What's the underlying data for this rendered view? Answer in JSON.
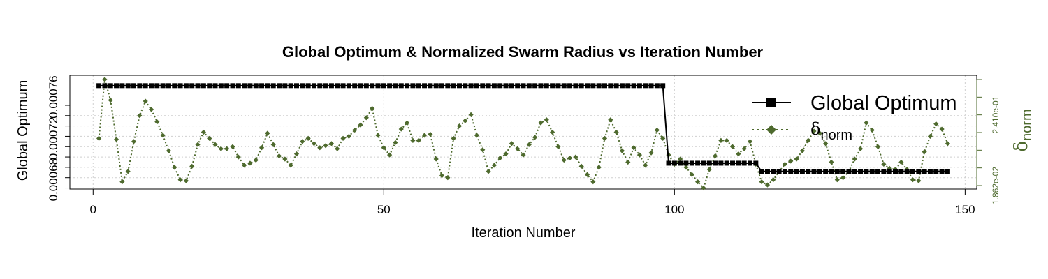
{
  "chart_data": {
    "type": "line",
    "title": "Global Optimum & Normalized Swarm Radius vs Iteration Number",
    "xlabel": "Iteration Number",
    "ylabel": "Global Optimum",
    "y2label_symbol": "δ",
    "y2label_sub": "norm",
    "xlim": [
      -4,
      152
    ],
    "xticks": [
      "0",
      "50",
      "100",
      "150"
    ],
    "ylim": [
      0.000671,
      0.000781
    ],
    "yticks": [
      "0.00068",
      "0.00072",
      "0.00076"
    ],
    "y2ticks": [
      "1.862e-02",
      "2.410e-01"
    ],
    "grid": true,
    "legend_position": "top-right",
    "colors": {
      "optimum": "#000000",
      "delta": "#4e6a2e"
    },
    "series": [
      {
        "name": "Global Optimum",
        "axis": "left",
        "segments": [
          {
            "x_from": 1,
            "x_to": 98,
            "value": 0.000771
          },
          {
            "x_from": 99,
            "x_to": 114,
            "value": 0.000696
          },
          {
            "x_from": 115,
            "x_to": 147,
            "value": 0.000688
          }
        ]
      },
      {
        "name": "δnorm",
        "legend_symbol": "δ",
        "legend_sub": "norm",
        "axis": "right",
        "values": [
          0.00072,
          0.000777,
          0.000757,
          0.000719,
          0.000678,
          0.000688,
          0.000717,
          0.000742,
          0.000756,
          0.000748,
          0.000736,
          0.000723,
          0.000708,
          0.000692,
          0.00068,
          0.000679,
          0.000693,
          0.000714,
          0.000726,
          0.00072,
          0.000714,
          0.00071,
          0.00071,
          0.000712,
          0.000702,
          0.000694,
          0.000696,
          0.000699,
          0.000711,
          0.000725,
          0.000714,
          0.000703,
          0.0007,
          0.000694,
          0.000705,
          0.000717,
          0.00072,
          0.000715,
          0.000711,
          0.000713,
          0.000715,
          0.00071,
          0.00072,
          0.000722,
          0.000728,
          0.000733,
          0.00074,
          0.000749,
          0.000723,
          0.000711,
          0.000704,
          0.000716,
          0.000729,
          0.000735,
          0.000718,
          0.000718,
          0.000723,
          0.000724,
          0.0007,
          0.000684,
          0.000682,
          0.00072,
          0.000732,
          0.000737,
          0.000743,
          0.000723,
          0.000709,
          0.000688,
          0.000694,
          0.000701,
          0.000705,
          0.000715,
          0.00071,
          0.000704,
          0.000714,
          0.000721,
          0.000735,
          0.000738,
          0.000726,
          0.000712,
          0.000699,
          0.000701,
          0.000702,
          0.000693,
          0.000685,
          0.000678,
          0.000692,
          0.00072,
          0.000738,
          0.000726,
          0.000708,
          0.000697,
          0.000711,
          0.000704,
          0.000694,
          0.000706,
          0.000728,
          0.00072,
          0.000704,
          0.000695,
          0.0007,
          0.000692,
          0.000685,
          0.000678,
          0.000672,
          0.00069,
          0.000703,
          0.000718,
          0.000718,
          0.000712,
          0.000705,
          0.00071,
          0.000717,
          0.000695,
          0.000678,
          0.000675,
          0.00068,
          0.000688,
          0.000695,
          0.000698,
          0.0007,
          0.000708,
          0.000718,
          0.000727,
          0.000725,
          0.000715,
          0.000697,
          0.00068,
          0.000682,
          0.000688,
          0.0007,
          0.00071,
          0.000735,
          0.000728,
          0.000712,
          0.000695,
          0.000691,
          0.00069,
          0.000697,
          0.00069,
          0.00068,
          0.000679,
          0.000707,
          0.000722,
          0.000734,
          0.000729,
          0.000715
        ]
      }
    ]
  }
}
